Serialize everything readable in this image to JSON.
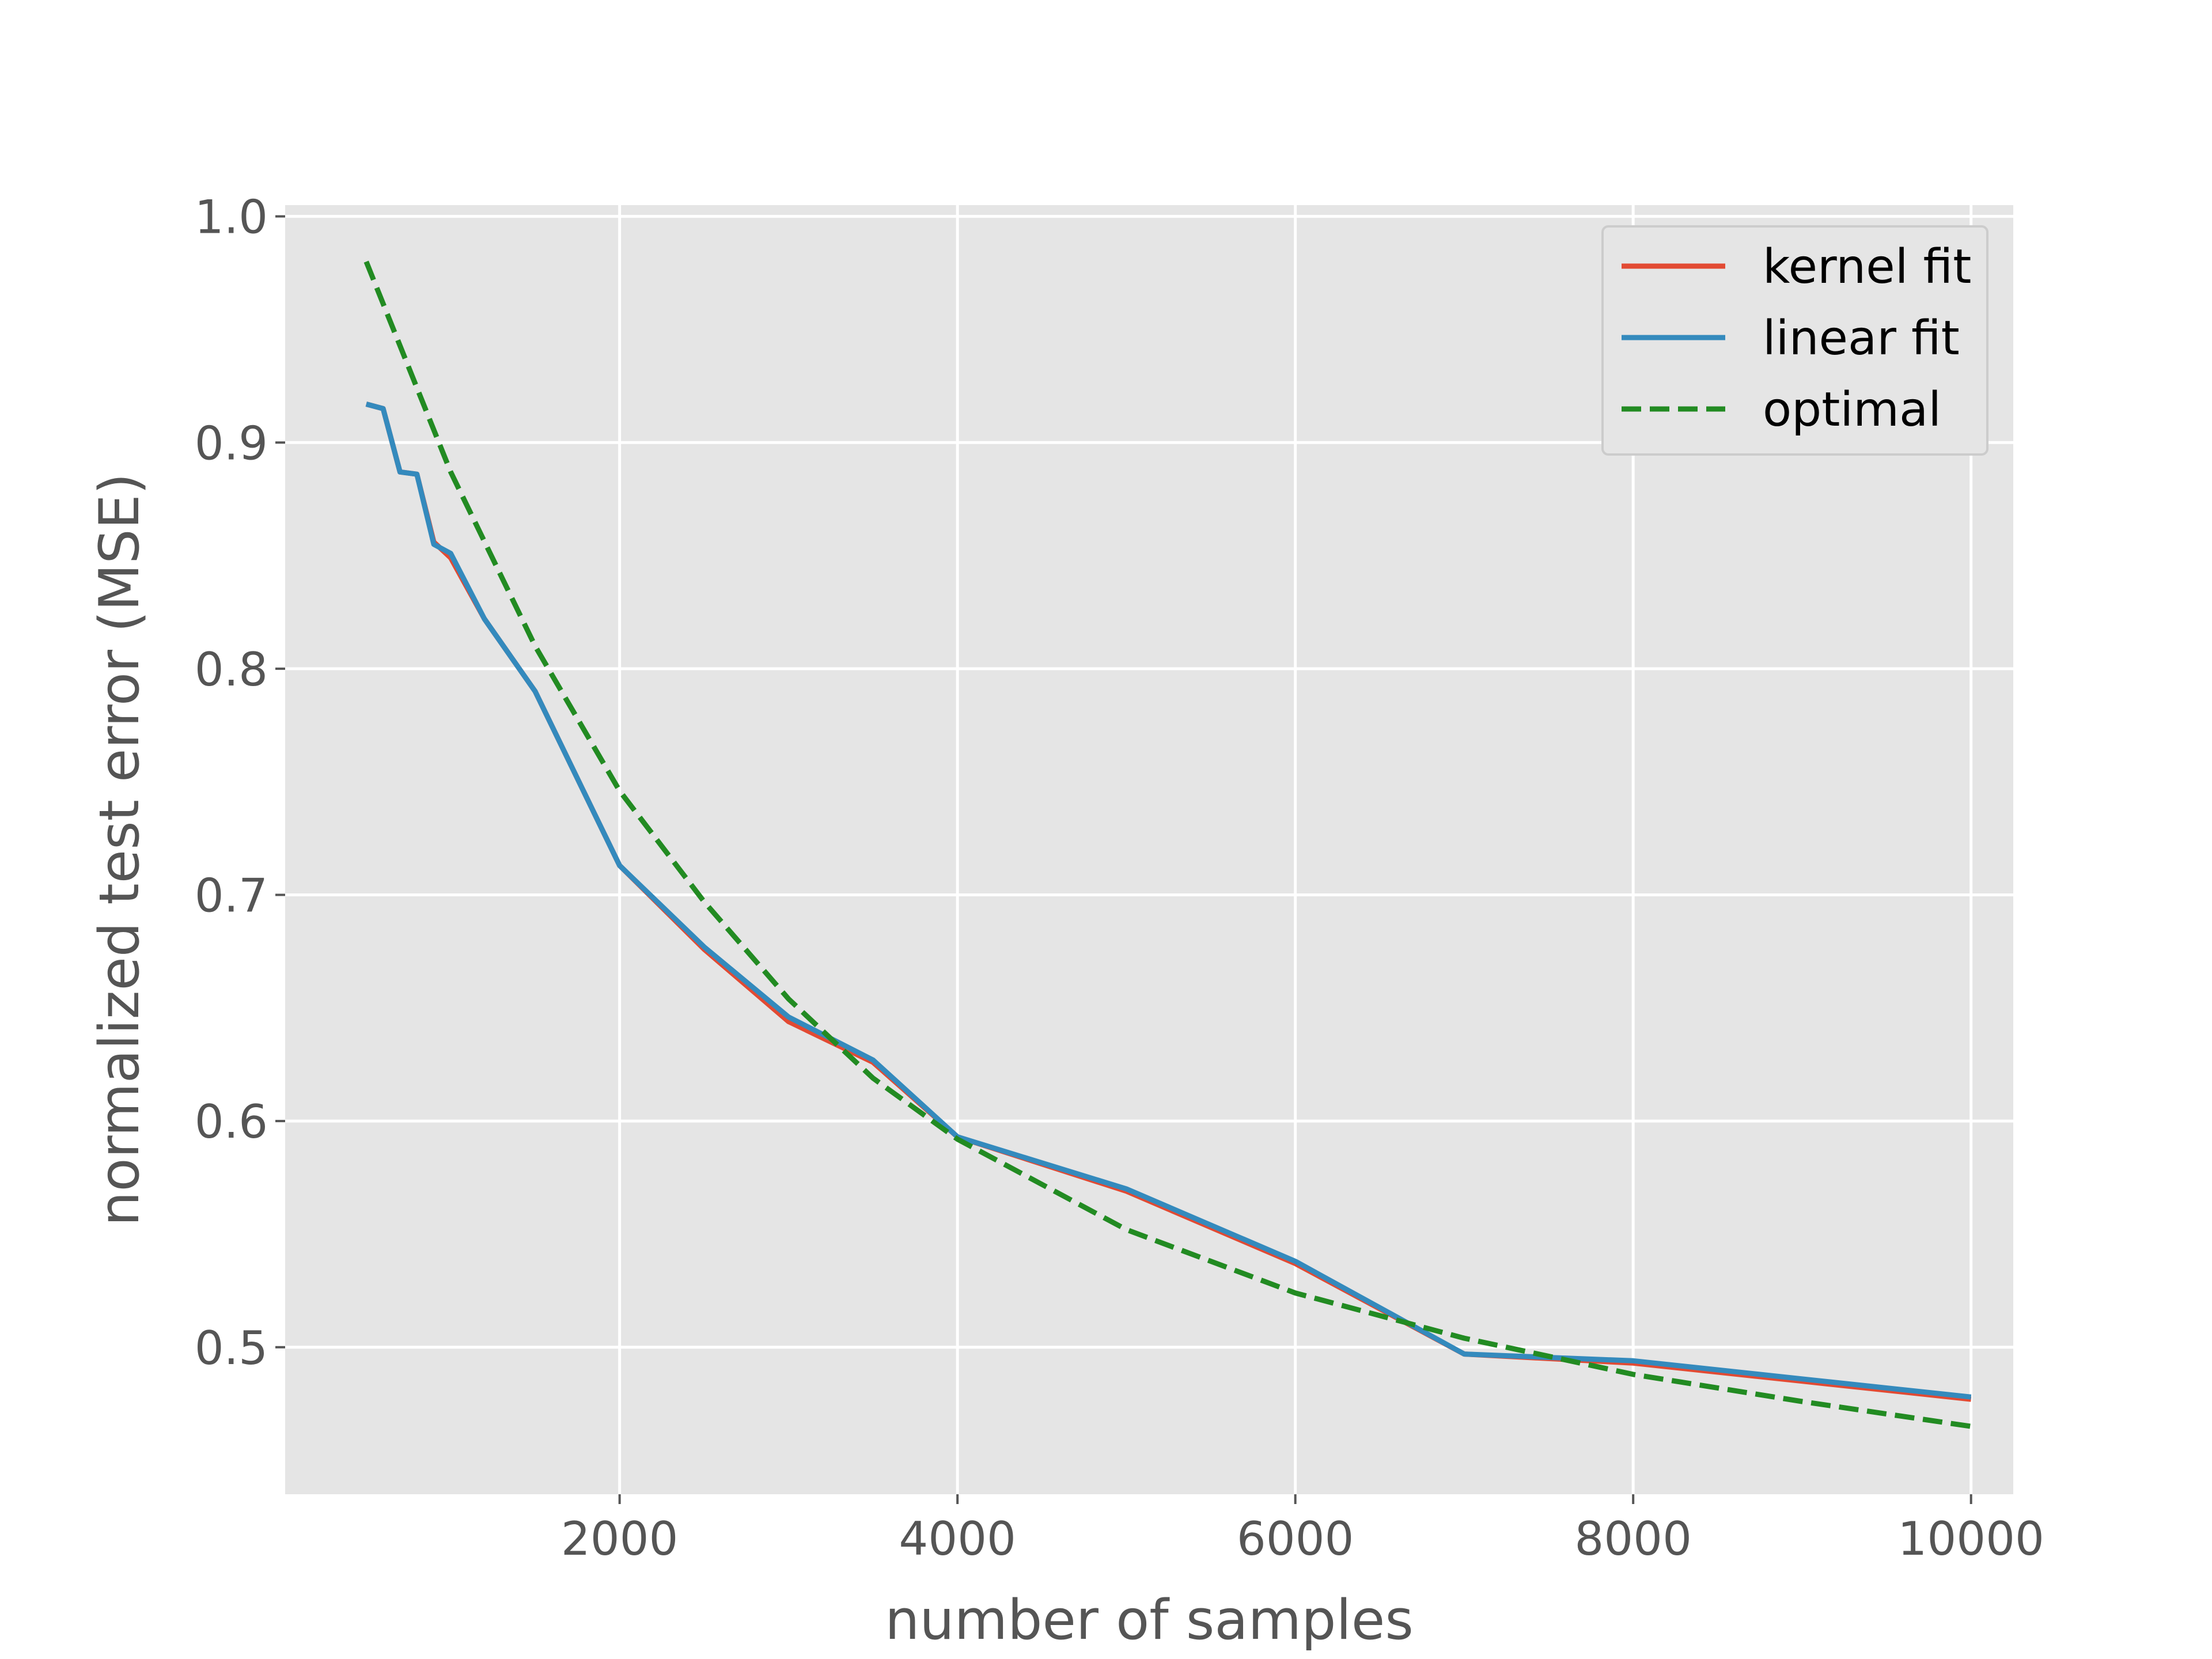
{
  "chart_data": {
    "type": "line",
    "xlabel": "number of samples",
    "ylabel": "normalized test error (MSE)",
    "xlim": [
      20,
      10250
    ],
    "ylim": [
      0.435,
      1.005
    ],
    "xticks": [
      2000,
      4000,
      6000,
      8000,
      10000
    ],
    "xtick_labels": [
      "2000",
      "4000",
      "6000",
      "8000",
      "10000"
    ],
    "yticks": [
      0.5,
      0.6,
      0.7,
      0.8,
      0.9,
      1.0
    ],
    "ytick_labels": [
      "0.5",
      "0.6",
      "0.7",
      "0.8",
      "0.9",
      "1.0"
    ],
    "grid": true,
    "legend_position": "top-right",
    "series": [
      {
        "name": "kernel fit",
        "color": "#e24a33",
        "style": "solid",
        "x": [
          500,
          600,
          700,
          800,
          900,
          1000,
          1200,
          1500,
          2000,
          2500,
          3000,
          3500,
          4000,
          5000,
          6000,
          7000,
          8000,
          9000,
          10000
        ],
        "y": [
          0.917,
          0.915,
          0.887,
          0.886,
          0.856,
          0.849,
          0.822,
          0.79,
          0.713,
          0.676,
          0.644,
          0.626,
          0.593,
          0.569,
          0.537,
          0.497,
          0.493,
          0.485,
          0.477
        ]
      },
      {
        "name": "linear fit",
        "color": "#348abd",
        "style": "solid",
        "x": [
          500,
          600,
          700,
          800,
          900,
          1000,
          1200,
          1500,
          2000,
          2500,
          3000,
          3500,
          4000,
          5000,
          6000,
          7000,
          8000,
          9000,
          10000
        ],
        "y": [
          0.917,
          0.915,
          0.887,
          0.886,
          0.855,
          0.851,
          0.822,
          0.79,
          0.713,
          0.677,
          0.646,
          0.627,
          0.593,
          0.57,
          0.538,
          0.497,
          0.494,
          0.486,
          0.478
        ]
      },
      {
        "name": "optimal",
        "color": "#228b22",
        "style": "dashed",
        "x": [
          500,
          1000,
          1500,
          2000,
          2500,
          3000,
          3500,
          4000,
          5000,
          6000,
          7000,
          8000,
          9000,
          10000
        ],
        "y": [
          0.98,
          0.887,
          0.81,
          0.746,
          0.697,
          0.654,
          0.619,
          0.592,
          0.552,
          0.524,
          0.504,
          0.488,
          0.476,
          0.465
        ]
      }
    ]
  }
}
